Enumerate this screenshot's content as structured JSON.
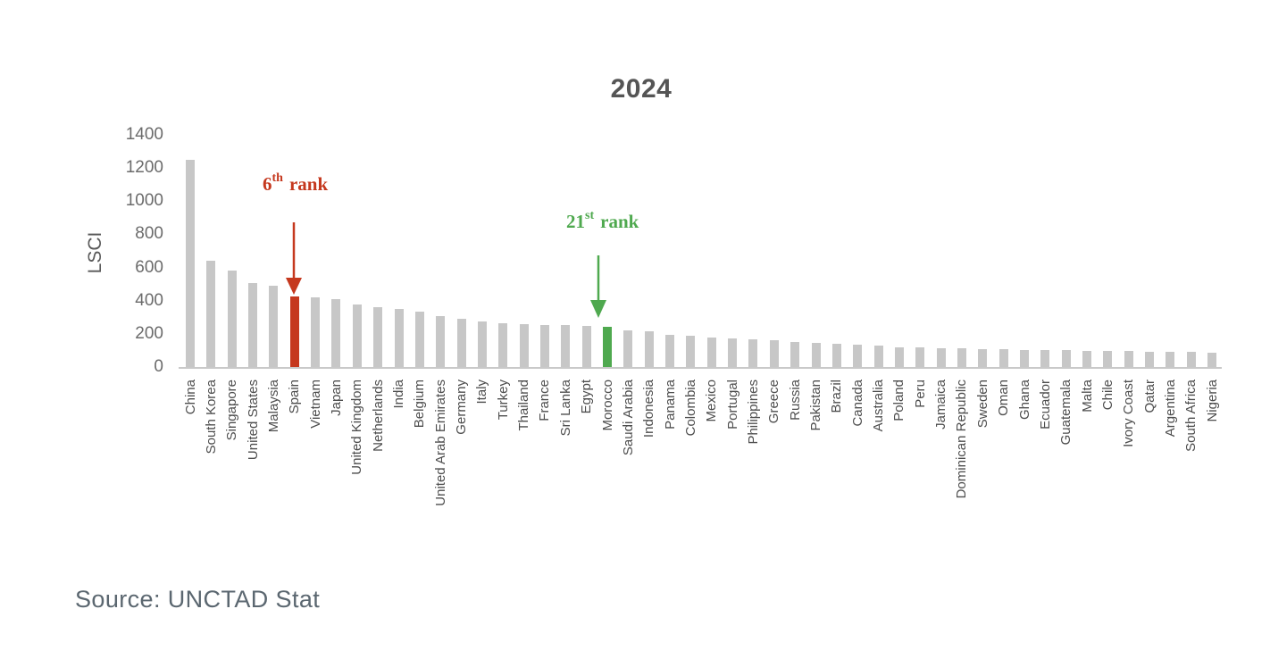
{
  "page": {
    "source_note": "Source: UNCTAD Stat"
  },
  "chart_data": {
    "type": "bar",
    "title": "2024",
    "ylabel": "LSCI",
    "xlabel": "",
    "ylim": [
      0,
      1400
    ],
    "yticks": [
      0,
      200,
      400,
      600,
      800,
      1000,
      1200,
      1400
    ],
    "grid": false,
    "legend": "none",
    "categories": [
      "China",
      "South Korea",
      "Singapore",
      "United States",
      "Malaysia",
      "Spain",
      "Vietnam",
      "Japan",
      "United Kingdom",
      "Netherlands",
      "India",
      "Belgium",
      "United Arab Emirates",
      "Germany",
      "Italy",
      "Turkey",
      "Thailand",
      "France",
      "Sri Lanka",
      "Egypt",
      "Morocco",
      "Saudi Arabia",
      "Indonesia",
      "Panama",
      "Colombia",
      "Mexico",
      "Portugal",
      "Philippines",
      "Greece",
      "Russia",
      "Pakistan",
      "Brazil",
      "Canada",
      "Australia",
      "Poland",
      "Peru",
      "Jamaica",
      "Dominican Republic",
      "Sweden",
      "Oman",
      "Ghana",
      "Ecuador",
      "Guatemala",
      "Malta",
      "Chile",
      "Ivory Coast",
      "Qatar",
      "Argentina",
      "South Africa",
      "Nigeria"
    ],
    "values": [
      1250,
      640,
      580,
      505,
      490,
      425,
      418,
      410,
      375,
      362,
      348,
      335,
      308,
      292,
      276,
      266,
      257,
      255,
      251,
      248,
      240,
      222,
      216,
      196,
      186,
      176,
      175,
      168,
      163,
      151,
      146,
      141,
      137,
      128,
      118,
      116,
      113,
      111,
      109,
      107,
      105,
      103,
      101,
      99,
      97,
      95,
      93,
      91,
      89,
      87
    ],
    "bar_colors": {
      "default": "#C7C7C7",
      "Spain": "#C5381E",
      "Morocco": "#4FA94F"
    },
    "annotations": [
      {
        "target": "Spain",
        "rank_number": "6",
        "rank_suffix": "th",
        "rank_word": "rank",
        "color": "#C5381E"
      },
      {
        "target": "Morocco",
        "rank_number": "21",
        "rank_suffix": "st",
        "rank_word": "rank",
        "color": "#4FA94F"
      }
    ]
  }
}
